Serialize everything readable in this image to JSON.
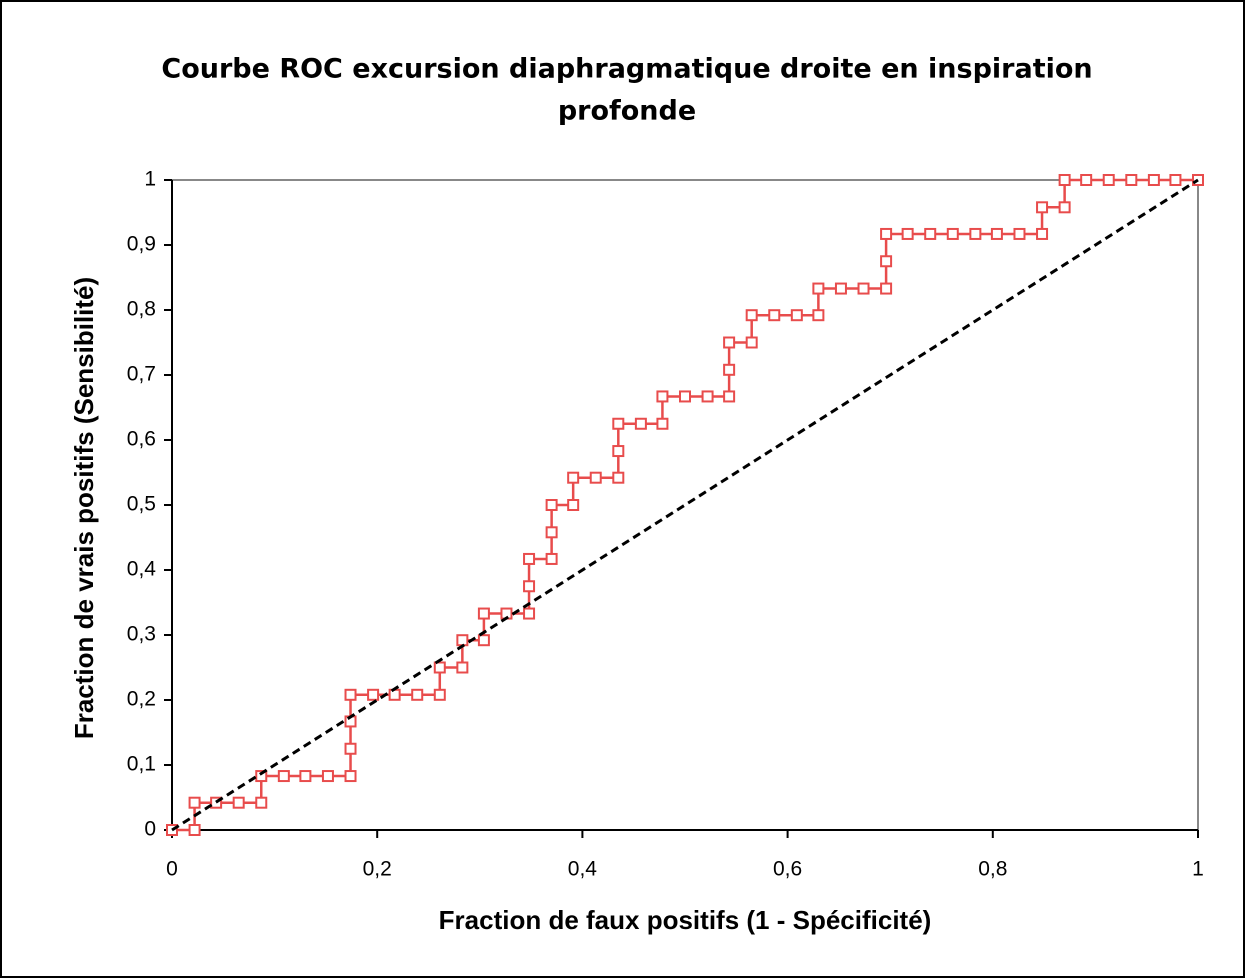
{
  "chart_data": {
    "type": "line",
    "title": [
      "Courbe ROC excursion diaphragmatique droite en inspiration",
      "profonde"
    ],
    "x_label": "Fraction de faux positifs (1 - Spécificité)",
    "y_label": "Fraction de vrais positifs (Sensibilité)",
    "xlim": [
      0,
      1
    ],
    "ylim": [
      0,
      1
    ],
    "xticks": [
      0,
      {
        "value": 0.2,
        "label": "0,2"
      },
      {
        "value": 0.4,
        "label": "0,4"
      },
      {
        "value": 0.6,
        "label": "0,6"
      },
      {
        "value": 0.8,
        "label": "0,8"
      },
      1
    ],
    "yticks": [
      0,
      {
        "value": 0.1,
        "label": "0,1"
      },
      {
        "value": 0.2,
        "label": "0,2"
      },
      {
        "value": 0.3,
        "label": "0,3"
      },
      {
        "value": 0.4,
        "label": "0,4"
      },
      {
        "value": 0.5,
        "label": "0,5"
      },
      {
        "value": 0.6,
        "label": "0,6"
      },
      {
        "value": 0.7,
        "label": "0,7"
      },
      {
        "value": 0.8,
        "label": "0,8"
      },
      {
        "value": 0.9,
        "label": "0,9"
      },
      1
    ],
    "series": [
      {
        "color": "#e84c4c",
        "marker": "square",
        "x": [
          0,
          0.022,
          0.022,
          0.043,
          0.065,
          0.087,
          0.087,
          0.109,
          0.13,
          0.152,
          0.174,
          0.174,
          0.174,
          0.174,
          0.196,
          0.217,
          0.239,
          0.261,
          0.261,
          0.283,
          0.283,
          0.304,
          0.304,
          0.326,
          0.348,
          0.348,
          0.348,
          0.37,
          0.37,
          0.37,
          0.391,
          0.391,
          0.413,
          0.435,
          0.435,
          0.435,
          0.457,
          0.478,
          0.478,
          0.5,
          0.522,
          0.543,
          0.543,
          0.543,
          0.565,
          0.565,
          0.587,
          0.609,
          0.63,
          0.63,
          0.652,
          0.674,
          0.696,
          0.696,
          0.696,
          0.717,
          0.739,
          0.761,
          0.783,
          0.804,
          0.826,
          0.848,
          0.848,
          0.87,
          0.87,
          0.891,
          0.913,
          0.935,
          0.957,
          0.978,
          1
        ],
        "values": [
          0,
          0,
          0.042,
          0.042,
          0.042,
          0.042,
          0.083,
          0.083,
          0.083,
          0.083,
          0.083,
          0.125,
          0.167,
          0.208,
          0.208,
          0.208,
          0.208,
          0.208,
          0.25,
          0.25,
          0.292,
          0.292,
          0.333,
          0.333,
          0.333,
          0.375,
          0.417,
          0.417,
          0.458,
          0.5,
          0.5,
          0.542,
          0.542,
          0.542,
          0.583,
          0.625,
          0.625,
          0.625,
          0.667,
          0.667,
          0.667,
          0.667,
          0.708,
          0.75,
          0.75,
          0.792,
          0.792,
          0.792,
          0.792,
          0.833,
          0.833,
          0.833,
          0.833,
          0.875,
          0.917,
          0.917,
          0.917,
          0.917,
          0.917,
          0.917,
          0.917,
          0.917,
          0.958,
          0.958,
          1,
          1,
          1,
          1,
          1,
          1,
          1
        ]
      },
      {
        "color": "#000000",
        "dashed": true,
        "x": [
          0,
          1
        ],
        "values": [
          0,
          1
        ]
      }
    ]
  }
}
